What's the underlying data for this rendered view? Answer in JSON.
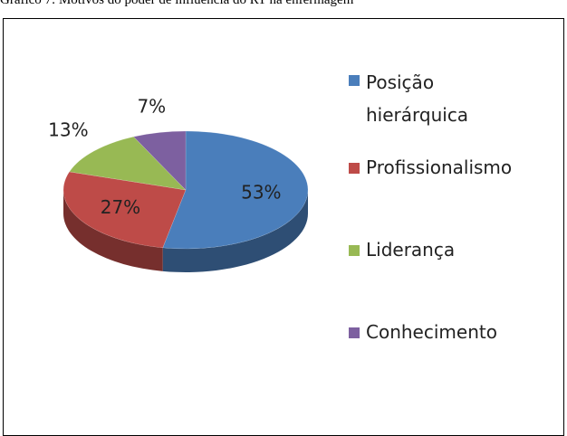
{
  "chart_data": {
    "type": "pie",
    "title": "Gráfico 7: Motivos do poder de influência do RT na enfermagem",
    "categories": [
      "Posição hierárquica",
      "Profissionalismo",
      "Liderança",
      "Conhecimento"
    ],
    "values": [
      53,
      27,
      13,
      7
    ],
    "value_labels": [
      "53%",
      "27%",
      "13%",
      "7%"
    ],
    "colors": [
      "#4a7ebb",
      "#be4b48",
      "#98b954",
      "#7d60a0"
    ],
    "legend": "right"
  }
}
